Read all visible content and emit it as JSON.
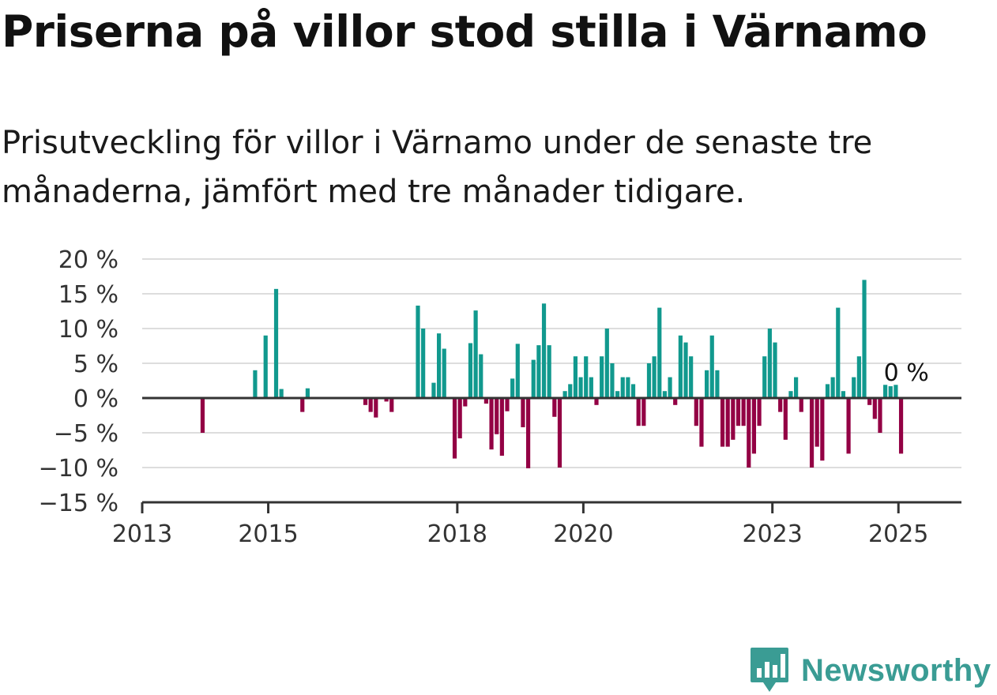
{
  "title": "Priserna på villor stod stilla i Värnamo",
  "subtitle": "Prisutveckling för villor i Värnamo under de senaste tre månaderna, jämfört med tre månader tidigare.",
  "brand": {
    "name": "Newsworthy",
    "logo_icon": "newsworthy-chart-icon"
  },
  "colors": {
    "positive": "#11998e",
    "negative": "#930044",
    "grid": "#dddddd",
    "axis": "#333333",
    "brand": "#3a9c94"
  },
  "chart_data": {
    "type": "bar",
    "ylim": [
      -15,
      20
    ],
    "yticks": [
      20,
      15,
      10,
      5,
      0,
      -5,
      -10,
      -15
    ],
    "ytick_labels": [
      "20 %",
      "15 %",
      "10 %",
      "5 %",
      "0 %",
      "−5 %",
      "−10 %",
      "−15 %"
    ],
    "xlim": [
      "2013-01",
      "2026-01"
    ],
    "xticks": [
      {
        "month": "2013-01",
        "label": "2013"
      },
      {
        "month": "2015-01",
        "label": "2015"
      },
      {
        "month": "2018-01",
        "label": "2018"
      },
      {
        "month": "2020-01",
        "label": "2020"
      },
      {
        "month": "2023-01",
        "label": "2023"
      },
      {
        "month": "2025-01",
        "label": "2025"
      }
    ],
    "last_value_label": "0 %",
    "x": [
      "2013-12",
      "2014-10",
      "2014-12",
      "2015-02",
      "2015-03",
      "2015-07",
      "2015-08",
      "2016-07",
      "2016-08",
      "2016-09",
      "2016-11",
      "2016-12",
      "2017-05",
      "2017-06",
      "2017-08",
      "2017-09",
      "2017-10",
      "2017-12",
      "2018-01",
      "2018-02",
      "2018-03",
      "2018-04",
      "2018-05",
      "2018-06",
      "2018-07",
      "2018-08",
      "2018-09",
      "2018-10",
      "2018-11",
      "2018-12",
      "2019-01",
      "2019-02",
      "2019-03",
      "2019-04",
      "2019-05",
      "2019-06",
      "2019-07",
      "2019-08",
      "2019-09",
      "2019-10",
      "2019-11",
      "2019-12",
      "2020-01",
      "2020-02",
      "2020-03",
      "2020-04",
      "2020-05",
      "2020-06",
      "2020-07",
      "2020-08",
      "2020-09",
      "2020-10",
      "2020-11",
      "2020-12",
      "2021-01",
      "2021-02",
      "2021-03",
      "2021-04",
      "2021-05",
      "2021-06",
      "2021-07",
      "2021-08",
      "2021-09",
      "2021-10",
      "2021-11",
      "2021-12",
      "2022-01",
      "2022-02",
      "2022-03",
      "2022-04",
      "2022-05",
      "2022-06",
      "2022-07",
      "2022-08",
      "2022-09",
      "2022-10",
      "2022-11",
      "2022-12",
      "2023-01",
      "2023-02",
      "2023-03",
      "2023-04",
      "2023-05",
      "2023-06",
      "2023-08",
      "2023-09",
      "2023-10",
      "2023-11",
      "2023-12",
      "2024-01",
      "2024-02",
      "2024-03",
      "2024-04",
      "2024-05",
      "2024-06",
      "2024-07",
      "2024-08",
      "2024-09",
      "2024-10",
      "2024-11",
      "2024-12",
      "2025-01",
      "2025-02"
    ],
    "values": [
      -5,
      4,
      9,
      15.7,
      1.3,
      -2,
      1.4,
      -1,
      -2,
      -2.8,
      -0.5,
      -2,
      13.3,
      10,
      2.2,
      9.3,
      7.1,
      -8.7,
      -5.8,
      -1.2,
      7.9,
      12.6,
      6.3,
      -0.8,
      -7.4,
      -5.2,
      -8.3,
      -1.9,
      2.8,
      7.8,
      -4.2,
      -10.1,
      5.5,
      7.6,
      13.6,
      7.6,
      -2.7,
      -10,
      1,
      2,
      6,
      3,
      6,
      3,
      -1,
      6,
      10,
      5,
      1,
      3,
      3,
      2,
      -4,
      -4,
      5,
      6,
      13,
      1,
      3,
      -1,
      9,
      8,
      6,
      -4,
      -7,
      4,
      9,
      4,
      -7,
      -7,
      -6,
      -4,
      -4,
      -10,
      -8,
      -4,
      6,
      10,
      8,
      -2,
      -6,
      1,
      3,
      -2,
      -10,
      -7,
      -9,
      2,
      3,
      13,
      1,
      -8,
      3,
      6,
      17,
      -1,
      -3,
      -5,
      1.9,
      1.7,
      1.9,
      -8,
      0
    ]
  }
}
